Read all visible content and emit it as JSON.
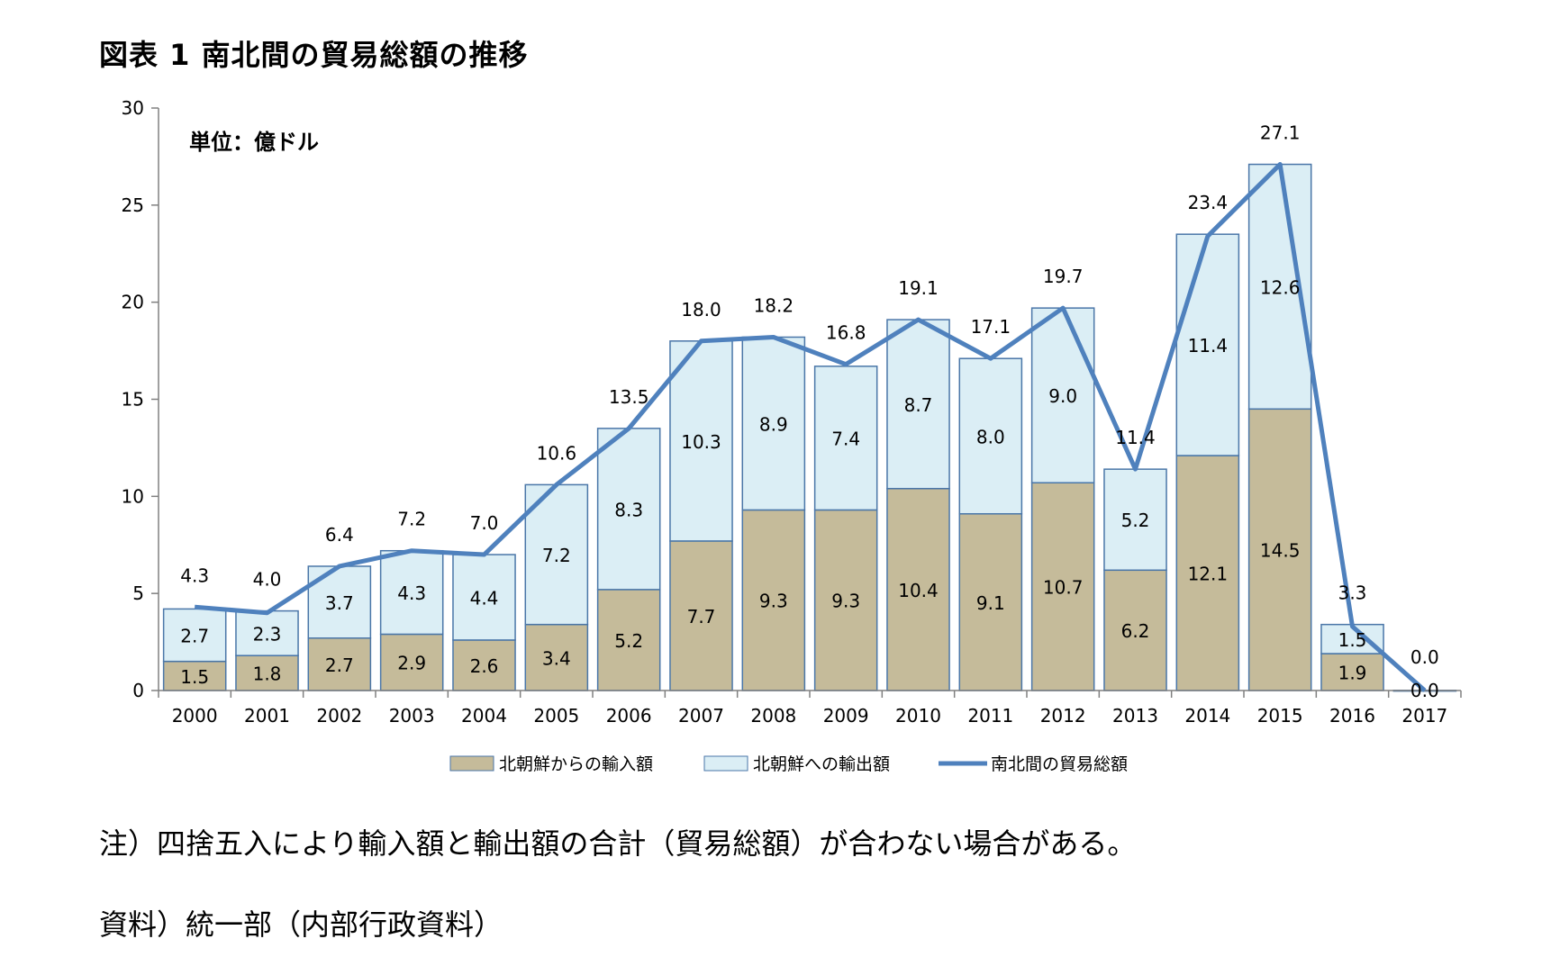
{
  "title": "図表 1 南北間の貿易総額の推移",
  "notes": [
    "注）四捨五入により輸入額と輸出額の合計（貿易総額）が合わない場合がある。",
    "資料）統一部（内部行政資料）"
  ],
  "colors": {
    "import": "#c5bb9a",
    "export": "#dbeef5",
    "bar_border": "#4a76a8",
    "line": "#4f81bd",
    "axis": "#808080"
  },
  "chart_data": {
    "type": "bar",
    "stacked": true,
    "unit_label": "単位：億ドル",
    "categories": [
      "2000",
      "2001",
      "2002",
      "2003",
      "2004",
      "2005",
      "2006",
      "2007",
      "2008",
      "2009",
      "2010",
      "2011",
      "2012",
      "2013",
      "2014",
      "2015",
      "2016",
      "2017"
    ],
    "series": [
      {
        "name": "北朝鮮からの輸入額",
        "kind": "bar",
        "values": [
          1.5,
          1.8,
          2.7,
          2.9,
          2.6,
          3.4,
          5.2,
          7.7,
          9.3,
          9.3,
          10.4,
          9.1,
          10.7,
          6.2,
          12.1,
          14.5,
          1.9,
          0.0
        ]
      },
      {
        "name": "北朝鮮への輸出額",
        "kind": "bar",
        "values": [
          2.7,
          2.3,
          3.7,
          4.3,
          4.4,
          7.2,
          8.3,
          10.3,
          8.9,
          7.4,
          8.7,
          8.0,
          9.0,
          5.2,
          11.4,
          12.6,
          1.5,
          0.0
        ]
      },
      {
        "name": "南北間の貿易総額",
        "kind": "line",
        "values": [
          4.3,
          4.0,
          6.4,
          7.2,
          7.0,
          10.6,
          13.5,
          18.0,
          18.2,
          16.8,
          19.1,
          17.1,
          19.7,
          11.4,
          23.4,
          27.1,
          3.3,
          0.0
        ]
      }
    ],
    "import_labels": [
      "1.5",
      "1.8",
      "2.7",
      "2.9",
      "2.6",
      "3.4",
      "5.2",
      "7.7",
      "9.3",
      "9.3",
      "10.4",
      "9.1",
      "10.7",
      "6.2",
      "12.1",
      "14.5",
      "1.9",
      "0.0"
    ],
    "export_labels": [
      "2.7",
      "2.3",
      "3.7",
      "4.3",
      "4.4",
      "7.2",
      "8.3",
      "10.3",
      "8.9",
      "7.4",
      "8.7",
      "8.0",
      "9.0",
      "5.2",
      "11.4",
      "12.6",
      "1.5",
      ""
    ],
    "total_labels": [
      "4.3",
      "4.0",
      "6.4",
      "7.2",
      "7.0",
      "10.6",
      "13.5",
      "18.0",
      "18.2",
      "16.8",
      "19.1",
      "17.1",
      "19.7",
      "11.4",
      "23.4",
      "27.1",
      "3.3",
      "0.0"
    ],
    "y_ticks": [
      "0",
      "5",
      "10",
      "15",
      "20",
      "25",
      "30"
    ],
    "ylim": [
      0,
      30
    ],
    "legend_position": "bottom",
    "grid": false
  }
}
